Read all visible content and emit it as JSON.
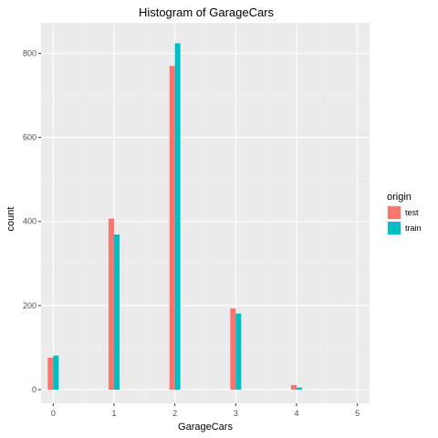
{
  "chart_data": {
    "type": "bar",
    "title": "Histogram of GarageCars",
    "xlabel": "GarageCars",
    "ylabel": "count",
    "categories": [
      "0",
      "1",
      "2",
      "3",
      "4",
      "5"
    ],
    "xlim": [
      -0.2,
      5.2
    ],
    "ylim": [
      0,
      840
    ],
    "yticks": [
      0,
      200,
      400,
      600,
      800
    ],
    "grid": true,
    "legend": {
      "title": "origin",
      "placement": "right"
    },
    "series": [
      {
        "name": "test",
        "color": "#F8766D",
        "values": [
          76,
          407,
          770,
          193,
          11,
          0
        ]
      },
      {
        "name": "train",
        "color": "#00BFC4",
        "values": [
          81,
          369,
          824,
          181,
          5,
          0
        ]
      }
    ]
  }
}
